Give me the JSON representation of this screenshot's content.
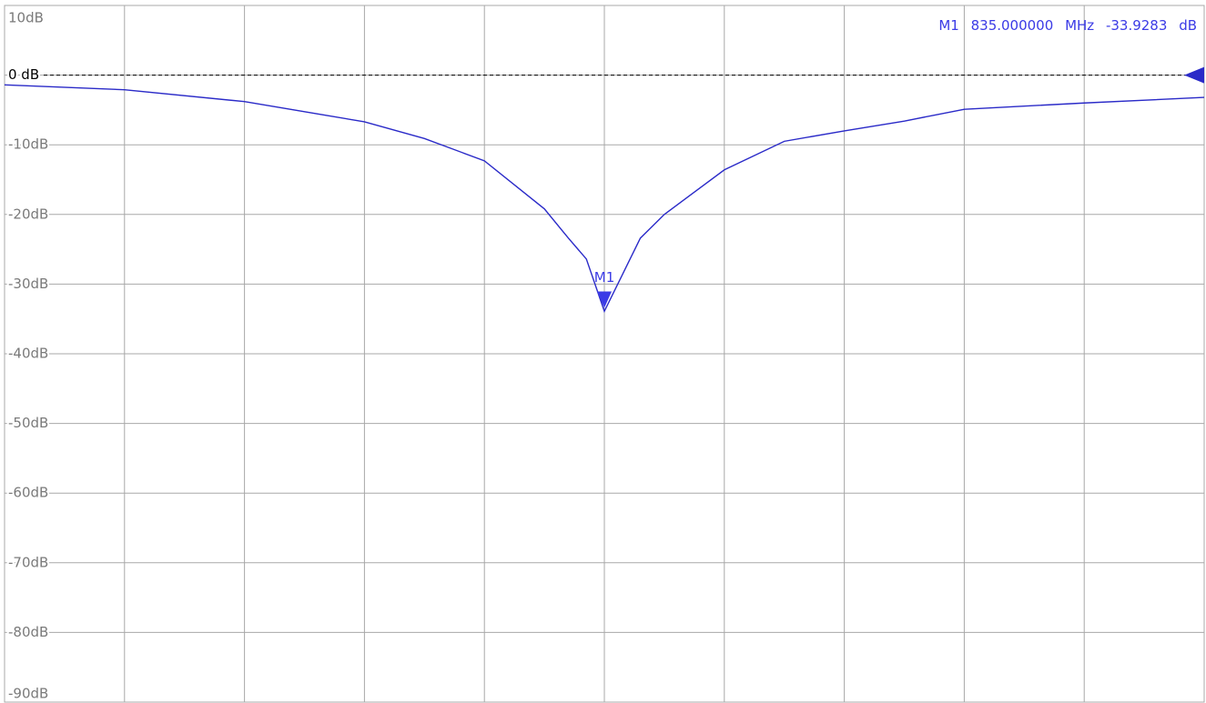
{
  "chart_data": {
    "type": "line",
    "xlim": [
      0,
      10
    ],
    "xticks": [
      0,
      1,
      2,
      3,
      4,
      5,
      6,
      7,
      8,
      9,
      10
    ],
    "ylim": [
      -90,
      10
    ],
    "yticks": [
      {
        "value": 10,
        "label": "10dB"
      },
      {
        "value": 0,
        "label": "0 dB"
      },
      {
        "value": -10,
        "label": "-10dB"
      },
      {
        "value": -20,
        "label": "-20dB"
      },
      {
        "value": -30,
        "label": "-30dB"
      },
      {
        "value": -40,
        "label": "-40dB"
      },
      {
        "value": -50,
        "label": "-50dB"
      },
      {
        "value": -60,
        "label": "-60dB"
      },
      {
        "value": -70,
        "label": "-70dB"
      },
      {
        "value": -80,
        "label": "-80dB"
      },
      {
        "value": -90,
        "label": "-90dB"
      }
    ],
    "grid": true,
    "reference_line": {
      "value": 0,
      "color": "#000000",
      "style": "dashed"
    },
    "series": [
      {
        "color": "#2a2ac8",
        "x": [
          0,
          1,
          2,
          3,
          3.5,
          4,
          4.5,
          4.7,
          4.85,
          5,
          5.3,
          5.5,
          6,
          6.5,
          7,
          7.5,
          8,
          9,
          10
        ],
        "values": [
          -1.4,
          -2.1,
          -3.8,
          -6.7,
          -9.1,
          -12.3,
          -19.2,
          -23.4,
          -26.4,
          -33.9,
          -23.4,
          -20,
          -13.6,
          -9.5,
          -8.0,
          -6.6,
          -4.9,
          -4.0,
          -3.2
        ]
      }
    ],
    "marker": {
      "label": "M1",
      "x": 5,
      "frequency": "835.000000",
      "freq_unit": "MHz",
      "value": -33.9283,
      "unit": "dB",
      "color": "#3b3be6"
    }
  }
}
